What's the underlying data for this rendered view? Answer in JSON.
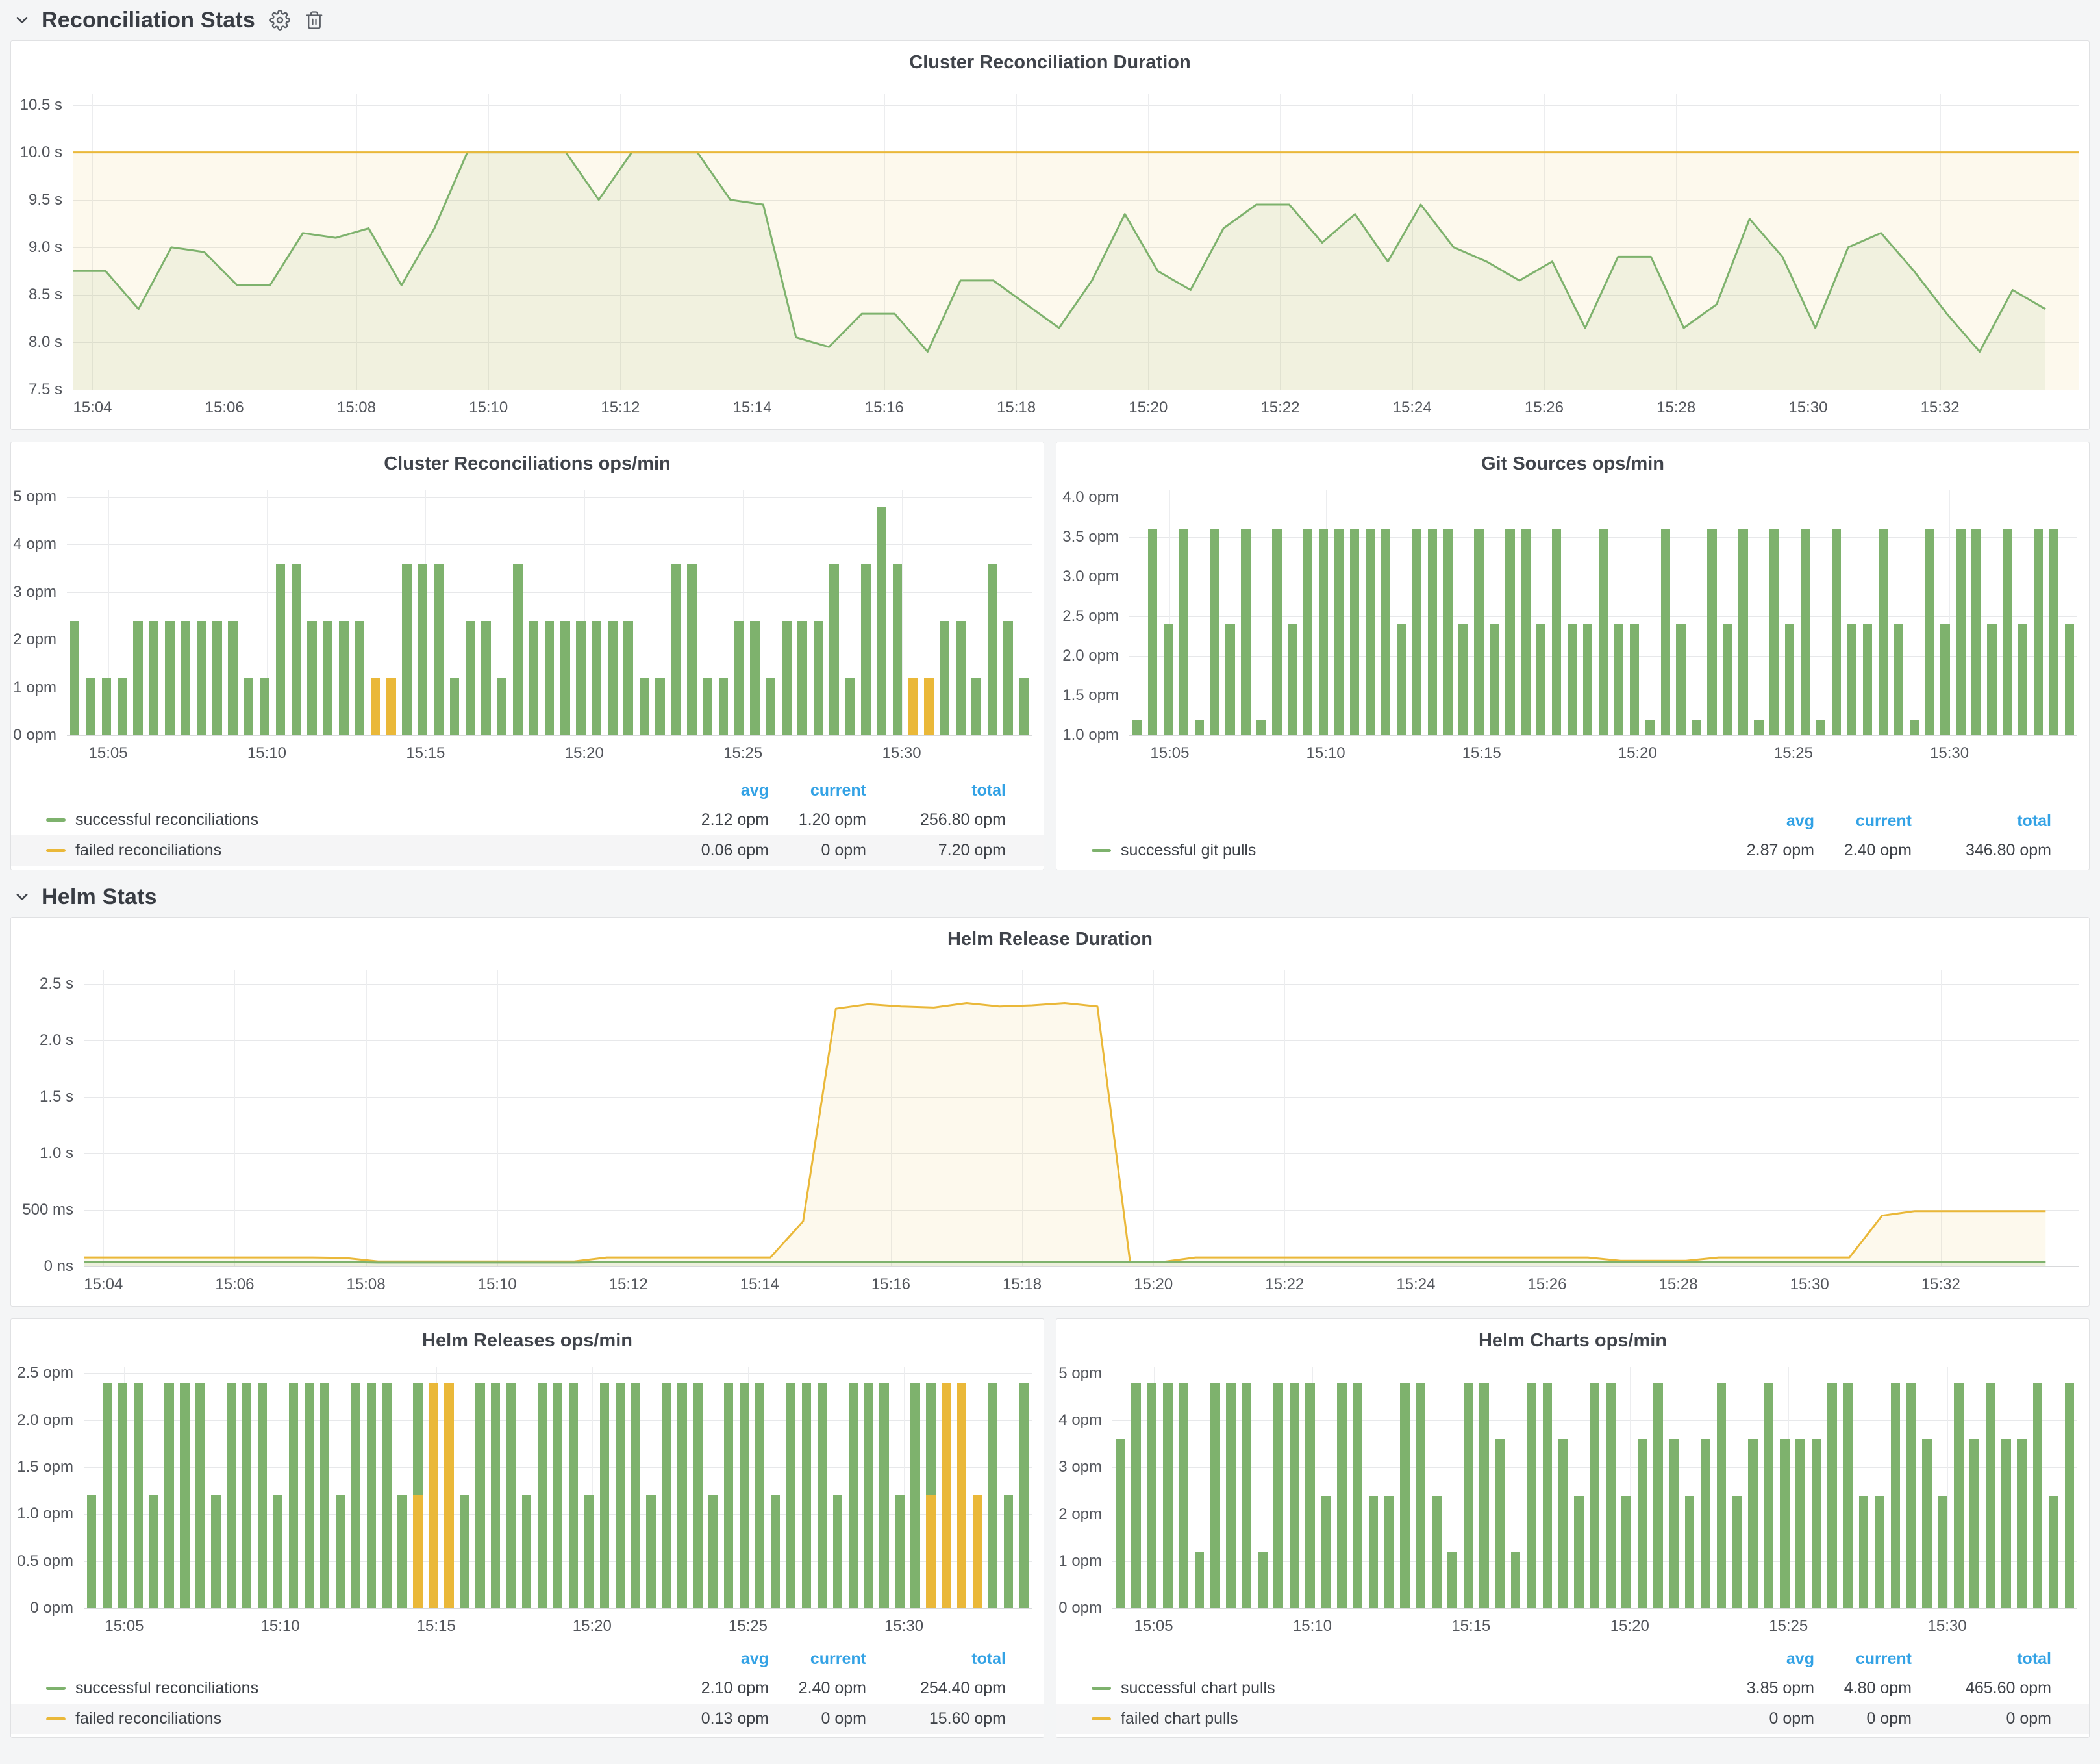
{
  "sections": [
    {
      "title": "Reconciliation Stats"
    },
    {
      "title": "Helm Stats"
    }
  ],
  "legend_columns": [
    "avg",
    "current",
    "total"
  ],
  "colors": {
    "green": "#7EB26D",
    "orange": "#EAB839",
    "blue": "#33A2E5"
  },
  "chart_data": [
    {
      "type": "line",
      "title": "Cluster Reconciliation Duration",
      "ylim": [
        7.5,
        10.62
      ],
      "yticks": [
        {
          "v": 7.5,
          "label": "7.5 s"
        },
        {
          "v": 8.0,
          "label": "8.0 s"
        },
        {
          "v": 8.5,
          "label": "8.5 s"
        },
        {
          "v": 9.0,
          "label": "9.0 s"
        },
        {
          "v": 9.5,
          "label": "9.5 s"
        },
        {
          "v": 10.0,
          "label": "10.0 s"
        },
        {
          "v": 10.5,
          "label": "10.5 s"
        }
      ],
      "x0": 3.7,
      "x1": 34.1,
      "t0": 3.7,
      "dt": 0.4983,
      "xticks": [
        {
          "m": 4,
          "label": "15:04"
        },
        {
          "m": 6,
          "label": "15:06"
        },
        {
          "m": 8,
          "label": "15:08"
        },
        {
          "m": 10,
          "label": "15:10"
        },
        {
          "m": 12,
          "label": "15:12"
        },
        {
          "m": 14,
          "label": "15:14"
        },
        {
          "m": 16,
          "label": "15:16"
        },
        {
          "m": 18,
          "label": "15:18"
        },
        {
          "m": 20,
          "label": "15:20"
        },
        {
          "m": 22,
          "label": "15:22"
        },
        {
          "m": 24,
          "label": "15:24"
        },
        {
          "m": 26,
          "label": "15:26"
        },
        {
          "m": 28,
          "label": "15:28"
        },
        {
          "m": 30,
          "label": "15:30"
        },
        {
          "m": 32,
          "label": "15:32"
        }
      ],
      "series": [
        {
          "color": "#7EB26D",
          "fill": "rgba(126,178,109,0.10)",
          "values": [
            8.75,
            8.75,
            8.35,
            9.0,
            8.95,
            8.6,
            8.6,
            9.15,
            9.1,
            9.2,
            8.6,
            9.2,
            10,
            10,
            10,
            10,
            9.5,
            10,
            10,
            10,
            9.5,
            9.45,
            8.05,
            7.95,
            8.3,
            8.3,
            7.9,
            8.65,
            8.65,
            8.4,
            8.15,
            8.65,
            9.35,
            8.75,
            8.55,
            9.2,
            9.45,
            9.45,
            9.05,
            9.35,
            8.85,
            9.45,
            9.0,
            8.85,
            8.65,
            8.85,
            8.15,
            8.9,
            8.9,
            8.15,
            8.4,
            9.3,
            8.9,
            8.15,
            9.0,
            9.15,
            8.75,
            8.3,
            7.9,
            8.55,
            8.35
          ]
        },
        {
          "color": "#EAB839",
          "fill": "rgba(234,184,57,0.09)",
          "value": 10
        }
      ]
    },
    {
      "type": "bar",
      "title": "Cluster Reconciliations ops/min",
      "ylim": [
        0,
        5.15
      ],
      "yticks": [
        {
          "v": 0,
          "label": "0 opm"
        },
        {
          "v": 1,
          "label": "1 opm"
        },
        {
          "v": 2,
          "label": "2 opm"
        },
        {
          "v": 3,
          "label": "3 opm"
        },
        {
          "v": 4,
          "label": "4 opm"
        },
        {
          "v": 5,
          "label": "5 opm"
        }
      ],
      "x0": 3.7,
      "x1": 34.1,
      "xticks": [
        {
          "m": 5,
          "label": "15:05"
        },
        {
          "m": 10,
          "label": "15:10"
        },
        {
          "m": 15,
          "label": "15:15"
        },
        {
          "m": 20,
          "label": "15:20"
        },
        {
          "m": 25,
          "label": "15:25"
        },
        {
          "m": 30,
          "label": "15:30"
        }
      ],
      "bars": {
        "success": [
          2.4,
          1.2,
          1.2,
          1.2,
          2.4,
          2.4,
          2.4,
          2.4,
          2.4,
          2.4,
          2.4,
          1.2,
          1.2,
          3.6,
          3.6,
          2.4,
          2.4,
          2.4,
          2.4,
          1.2,
          1.2,
          3.6,
          3.6,
          3.6,
          1.2,
          2.4,
          2.4,
          1.2,
          3.6,
          2.4,
          2.4,
          2.4,
          2.4,
          2.4,
          2.4,
          2.4,
          1.2,
          1.2,
          3.6,
          3.6,
          1.2,
          1.2,
          2.4,
          2.4,
          1.2,
          2.4,
          2.4,
          2.4,
          3.6,
          1.2,
          3.6,
          4.8,
          3.6,
          1.2,
          1.2,
          2.4,
          2.4,
          1.2,
          3.6,
          2.4,
          1.2
        ],
        "failed": {
          "19": 1.2,
          "20": 1.2,
          "53": 1.2,
          "54": 1.2
        }
      },
      "legend": {
        "rows": [
          {
            "label": "successful reconciliations",
            "color": "green",
            "avg": "2.12 opm",
            "current": "1.20 opm",
            "total": "256.80 opm"
          },
          {
            "label": "failed reconciliations",
            "color": "orange",
            "avg": "0.06 opm",
            "current": "0 opm",
            "total": "7.20 opm"
          }
        ]
      }
    },
    {
      "type": "bar",
      "title": "Git Sources ops/min",
      "ylim": [
        1.0,
        4.1
      ],
      "yticks": [
        {
          "v": 1.0,
          "label": "1.0 opm"
        },
        {
          "v": 1.5,
          "label": "1.5 opm"
        },
        {
          "v": 2.0,
          "label": "2.0 opm"
        },
        {
          "v": 2.5,
          "label": "2.5 opm"
        },
        {
          "v": 3.0,
          "label": "3.0 opm"
        },
        {
          "v": 3.5,
          "label": "3.5 opm"
        },
        {
          "v": 4.0,
          "label": "4.0 opm"
        }
      ],
      "x0": 3.7,
      "x1": 34.1,
      "xticks": [
        {
          "m": 5,
          "label": "15:05"
        },
        {
          "m": 10,
          "label": "15:10"
        },
        {
          "m": 15,
          "label": "15:15"
        },
        {
          "m": 20,
          "label": "15:20"
        },
        {
          "m": 25,
          "label": "15:25"
        },
        {
          "m": 30,
          "label": "15:30"
        }
      ],
      "bars": {
        "success": [
          1.2,
          3.6,
          2.4,
          3.6,
          1.2,
          3.6,
          2.4,
          3.6,
          1.2,
          3.6,
          2.4,
          3.6,
          3.6,
          3.6,
          3.6,
          3.6,
          3.6,
          2.4,
          3.6,
          3.6,
          3.6,
          2.4,
          3.6,
          2.4,
          3.6,
          3.6,
          2.4,
          3.6,
          2.4,
          2.4,
          3.6,
          2.4,
          2.4,
          1.2,
          3.6,
          2.4,
          1.2,
          3.6,
          2.4,
          3.6,
          1.2,
          3.6,
          2.4,
          3.6,
          1.2,
          3.6,
          2.4,
          2.4,
          3.6,
          2.4,
          1.2,
          3.6,
          2.4,
          3.6,
          3.6,
          2.4,
          3.6,
          2.4,
          3.6,
          3.6,
          2.4
        ],
        "failed": {}
      },
      "legend": {
        "rows": [
          {
            "label": "successful git pulls",
            "color": "green",
            "avg": "2.87 opm",
            "current": "2.40 opm",
            "total": "346.80 opm"
          }
        ]
      }
    },
    {
      "type": "line",
      "title": "Helm Release Duration",
      "ylim": [
        0,
        2.62
      ],
      "yticks": [
        {
          "v": 0,
          "label": "0 ns"
        },
        {
          "v": 0.5,
          "label": "500 ms"
        },
        {
          "v": 1.0,
          "label": "1.0 s"
        },
        {
          "v": 1.5,
          "label": "1.5 s"
        },
        {
          "v": 2.0,
          "label": "2.0 s"
        },
        {
          "v": 2.5,
          "label": "2.5 s"
        }
      ],
      "x0": 3.7,
      "x1": 34.1,
      "t0": 3.7,
      "dt": 0.4983,
      "xticks": [
        {
          "m": 4,
          "label": "15:04"
        },
        {
          "m": 6,
          "label": "15:06"
        },
        {
          "m": 8,
          "label": "15:08"
        },
        {
          "m": 10,
          "label": "15:10"
        },
        {
          "m": 12,
          "label": "15:12"
        },
        {
          "m": 14,
          "label": "15:14"
        },
        {
          "m": 16,
          "label": "15:16"
        },
        {
          "m": 18,
          "label": "15:18"
        },
        {
          "m": 20,
          "label": "15:20"
        },
        {
          "m": 22,
          "label": "15:22"
        },
        {
          "m": 24,
          "label": "15:24"
        },
        {
          "m": 26,
          "label": "15:26"
        },
        {
          "m": 28,
          "label": "15:28"
        },
        {
          "m": 30,
          "label": "15:30"
        },
        {
          "m": 32,
          "label": "15:32"
        }
      ],
      "series": [
        {
          "color": "#EAB839",
          "fill": "rgba(234,184,57,0.09)",
          "values": [
            0.08,
            0.08,
            0.08,
            0.08,
            0.08,
            0.08,
            0.08,
            0.08,
            0.075,
            0.045,
            0.045,
            0.045,
            0.045,
            0.045,
            0.045,
            0.045,
            0.08,
            0.08,
            0.08,
            0.08,
            0.08,
            0.08,
            0.4,
            2.28,
            2.32,
            2.3,
            2.29,
            2.33,
            2.3,
            2.31,
            2.33,
            2.3,
            0.04,
            0.04,
            0.08,
            0.08,
            0.08,
            0.08,
            0.08,
            0.08,
            0.08,
            0.08,
            0.08,
            0.08,
            0.08,
            0.08,
            0.08,
            0.05,
            0.05,
            0.05,
            0.08,
            0.08,
            0.08,
            0.08,
            0.08,
            0.45,
            0.49,
            0.49,
            0.49,
            0.49,
            0.49
          ]
        },
        {
          "color": "#7EB26D",
          "fill": "rgba(126,178,109,0.12)",
          "values": [
            0.04,
            0.04,
            0.04,
            0.04,
            0.04,
            0.04,
            0.04,
            0.04,
            0.04,
            0.035,
            0.035,
            0.035,
            0.035,
            0.035,
            0.035,
            0.035,
            0.04,
            0.04,
            0.04,
            0.04,
            0.04,
            0.04,
            0.04,
            0.04,
            0.04,
            0.04,
            0.04,
            0.04,
            0.04,
            0.04,
            0.04,
            0.04,
            0.04,
            0.04,
            0.04,
            0.04,
            0.04,
            0.04,
            0.04,
            0.04,
            0.04,
            0.04,
            0.04,
            0.04,
            0.04,
            0.04,
            0.04,
            0.04,
            0.04,
            0.04,
            0.04,
            0.04,
            0.04,
            0.04,
            0.04,
            0.04,
            0.042,
            0.042,
            0.042,
            0.042,
            0.042
          ]
        }
      ]
    },
    {
      "type": "bar",
      "title": "Helm Releases ops/min",
      "ylim": [
        0,
        2.57
      ],
      "yticks": [
        {
          "v": 0,
          "label": "0 opm"
        },
        {
          "v": 0.5,
          "label": "0.5 opm"
        },
        {
          "v": 1.0,
          "label": "1.0 opm"
        },
        {
          "v": 1.5,
          "label": "1.5 opm"
        },
        {
          "v": 2.0,
          "label": "2.0 opm"
        },
        {
          "v": 2.5,
          "label": "2.5 opm"
        }
      ],
      "x0": 3.7,
      "x1": 34.1,
      "xticks": [
        {
          "m": 5,
          "label": "15:05"
        },
        {
          "m": 10,
          "label": "15:10"
        },
        {
          "m": 15,
          "label": "15:15"
        },
        {
          "m": 20,
          "label": "15:20"
        },
        {
          "m": 25,
          "label": "15:25"
        },
        {
          "m": 30,
          "label": "15:30"
        }
      ],
      "bars": {
        "success": [
          1.2,
          2.4,
          2.4,
          2.4,
          1.2,
          2.4,
          2.4,
          2.4,
          1.2,
          2.4,
          2.4,
          2.4,
          1.2,
          2.4,
          2.4,
          2.4,
          1.2,
          2.4,
          2.4,
          2.4,
          1.2,
          2.4,
          2.4,
          2.4,
          1.2,
          2.4,
          2.4,
          2.4,
          1.2,
          2.4,
          2.4,
          2.4,
          1.2,
          2.4,
          2.4,
          2.4,
          1.2,
          2.4,
          2.4,
          2.4,
          1.2,
          2.4,
          2.4,
          2.4,
          1.2,
          2.4,
          2.4,
          2.4,
          1.2,
          2.4,
          2.4,
          2.4,
          1.2,
          2.4,
          2.4,
          2.4,
          2.4,
          1.2,
          2.4,
          1.2,
          2.4
        ],
        "failed": {
          "21": 1.2,
          "22": 2.4,
          "23": 2.4,
          "54": 1.2,
          "55": 2.4,
          "56": 2.4,
          "57": 1.2
        }
      },
      "legend": {
        "rows": [
          {
            "label": "successful reconciliations",
            "color": "green",
            "avg": "2.10 opm",
            "current": "2.40 opm",
            "total": "254.40 opm"
          },
          {
            "label": "failed reconciliations",
            "color": "orange",
            "avg": "0.13 opm",
            "current": "0 opm",
            "total": "15.60 opm"
          }
        ]
      }
    },
    {
      "type": "bar",
      "title": "Helm Charts ops/min",
      "ylim": [
        0,
        5.15
      ],
      "yticks": [
        {
          "v": 0,
          "label": "0 opm"
        },
        {
          "v": 1,
          "label": "1 opm"
        },
        {
          "v": 2,
          "label": "2 opm"
        },
        {
          "v": 3,
          "label": "3 opm"
        },
        {
          "v": 4,
          "label": "4 opm"
        },
        {
          "v": 5,
          "label": "5 opm"
        }
      ],
      "x0": 3.7,
      "x1": 34.1,
      "xticks": [
        {
          "m": 5,
          "label": "15:05"
        },
        {
          "m": 10,
          "label": "15:10"
        },
        {
          "m": 15,
          "label": "15:15"
        },
        {
          "m": 20,
          "label": "15:20"
        },
        {
          "m": 25,
          "label": "15:25"
        },
        {
          "m": 30,
          "label": "15:30"
        }
      ],
      "bars": {
        "success": [
          3.6,
          4.8,
          4.8,
          4.8,
          4.8,
          1.2,
          4.8,
          4.8,
          4.8,
          1.2,
          4.8,
          4.8,
          4.8,
          2.4,
          4.8,
          4.8,
          2.4,
          2.4,
          4.8,
          4.8,
          2.4,
          1.2,
          4.8,
          4.8,
          3.6,
          1.2,
          4.8,
          4.8,
          3.6,
          2.4,
          4.8,
          4.8,
          2.4,
          3.6,
          4.8,
          3.6,
          2.4,
          3.6,
          4.8,
          2.4,
          3.6,
          4.8,
          3.6,
          3.6,
          3.6,
          4.8,
          4.8,
          2.4,
          2.4,
          4.8,
          4.8,
          3.6,
          2.4,
          4.8,
          3.6,
          4.8,
          3.6,
          3.6,
          4.8,
          2.4,
          4.8
        ],
        "failed": {}
      },
      "legend": {
        "rows": [
          {
            "label": "successful chart pulls",
            "color": "green",
            "avg": "3.85 opm",
            "current": "4.80 opm",
            "total": "465.60 opm"
          },
          {
            "label": "failed chart pulls",
            "color": "orange",
            "avg": "0 opm",
            "current": "0 opm",
            "total": "0 opm"
          }
        ]
      }
    }
  ]
}
